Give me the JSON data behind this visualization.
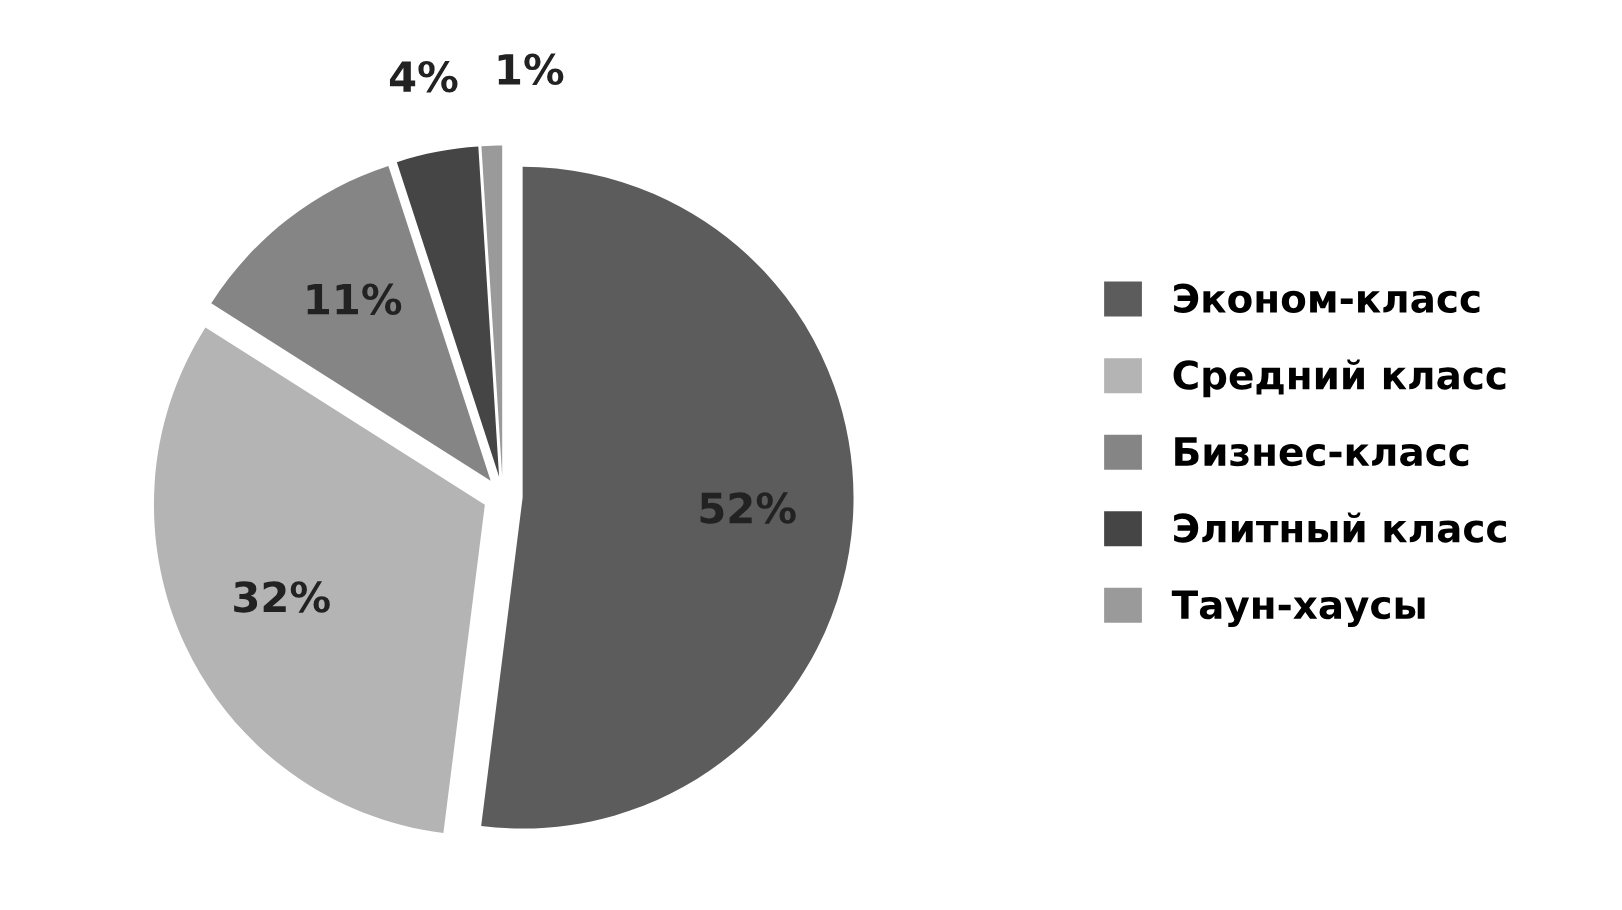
{
  "chart_data": {
    "type": "pie",
    "categories": [
      "Эконом-класс",
      "Средний класс",
      "Бизнес-класс",
      "Элитный класс",
      "Таун-хаусы"
    ],
    "values": [
      52,
      32,
      11,
      4,
      1
    ],
    "colors": [
      "#5c5c5c",
      "#b4b4b4",
      "#858585",
      "#454545",
      "#9a9a9a"
    ],
    "value_labels": [
      "52%",
      "32%",
      "11%",
      "4%",
      "1%"
    ],
    "legend": "right"
  }
}
